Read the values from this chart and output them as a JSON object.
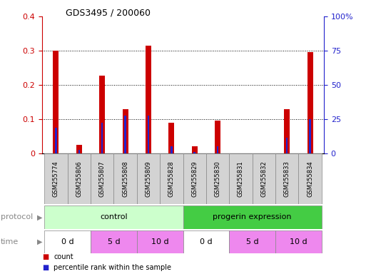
{
  "title": "GDS3495 / 200060",
  "samples": [
    "GSM255774",
    "GSM255806",
    "GSM255807",
    "GSM255808",
    "GSM255809",
    "GSM255828",
    "GSM255829",
    "GSM255830",
    "GSM255831",
    "GSM255832",
    "GSM255833",
    "GSM255834"
  ],
  "count_values": [
    0.3,
    0.025,
    0.228,
    0.13,
    0.315,
    0.09,
    0.02,
    0.095,
    0.0,
    0.0,
    0.13,
    0.295
  ],
  "percentile_values": [
    0.075,
    0.01,
    0.09,
    0.11,
    0.11,
    0.02,
    0.005,
    0.02,
    0.0,
    0.0,
    0.045,
    0.1
  ],
  "count_color": "#cc0000",
  "percentile_color": "#2222cc",
  "ylim": [
    0,
    0.4
  ],
  "y2lim": [
    0,
    100
  ],
  "yticks": [
    0,
    0.1,
    0.2,
    0.3,
    0.4
  ],
  "y2ticks": [
    0,
    25,
    50,
    75,
    100
  ],
  "ytick_labels": [
    "0",
    "0.1",
    "0.2",
    "0.3",
    "0.4"
  ],
  "y2tick_labels": [
    "0",
    "25",
    "50",
    "75",
    "100%"
  ],
  "legend_count": "count",
  "legend_pct": "percentile rank within the sample",
  "protocol_label": "protocol",
  "time_label": "time",
  "sample_bg_color": "#d3d3d3",
  "sample_border_color": "#888888",
  "proto_groups": [
    {
      "label": "control",
      "start": 0,
      "end": 5,
      "color": "#ccffcc"
    },
    {
      "label": "progerin expression",
      "start": 6,
      "end": 11,
      "color": "#44cc44"
    }
  ],
  "time_groups": [
    {
      "label": "0 d",
      "start": 0,
      "end": 1,
      "color": "#ffffff"
    },
    {
      "label": "5 d",
      "start": 2,
      "end": 3,
      "color": "#ee88ee"
    },
    {
      "label": "10 d",
      "start": 4,
      "end": 5,
      "color": "#ee88ee"
    },
    {
      "label": "0 d",
      "start": 6,
      "end": 7,
      "color": "#ffffff"
    },
    {
      "label": "5 d",
      "start": 8,
      "end": 9,
      "color": "#ee88ee"
    },
    {
      "label": "10 d",
      "start": 10,
      "end": 11,
      "color": "#ee88ee"
    }
  ]
}
